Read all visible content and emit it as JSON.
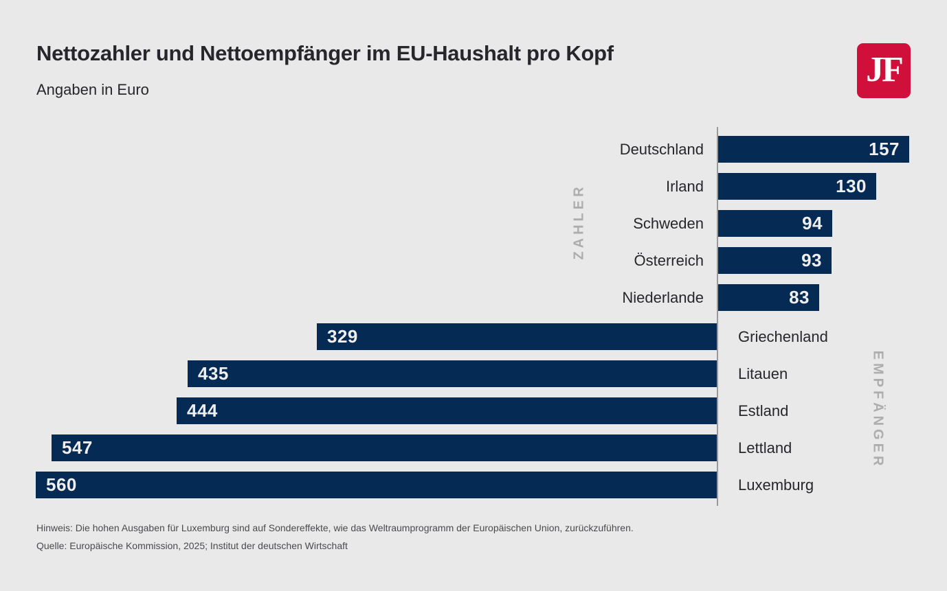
{
  "header": {
    "title": "Nettozahler und Nettoempfänger im EU-Haushalt pro Kopf",
    "subtitle": "Angaben in Euro",
    "logo": {
      "text": "JF",
      "background": "#D0103A",
      "text_color": "#FFFFFF"
    }
  },
  "chart_data": {
    "type": "bar",
    "orientation": "horizontal-diverging",
    "title": "Nettozahler und Nettoempfänger im EU-Haushalt pro Kopf",
    "unit": "Euro pro Kopf",
    "value_labels": "inside-bar-end",
    "grid": false,
    "legend": false,
    "groups": [
      {
        "name": "ZAHLER",
        "side": "right",
        "categories": [
          "Deutschland",
          "Irland",
          "Schweden",
          "Österreich",
          "Niederlande"
        ],
        "values": [
          157,
          130,
          94,
          93,
          83
        ]
      },
      {
        "name": "EMPFÄNGER",
        "side": "left",
        "categories": [
          "Griechenland",
          "Litauen",
          "Estland",
          "Lettland",
          "Luxemburg"
        ],
        "values": [
          329,
          435,
          444,
          547,
          560
        ]
      }
    ]
  },
  "footer": {
    "note": "Hinweis: Die hohen Ausgaben für Luxemburg sind auf Sondereffekte, wie das Weltraumprogramm der Europäischen Union, zurückzuführen.",
    "source": "Quelle: Europäische Kommission, 2025; Institut der deutschen Wirtschaft"
  },
  "colors": {
    "background": "#E9E9E9",
    "bar": "#052A54",
    "axis_line": "#9A9A9A",
    "group_label": "#ADADAD",
    "text_dark": "#26262B",
    "value_text": "#EFEFEF",
    "footer_text": "#4A4A4E",
    "logo_red": "#D0103A"
  }
}
